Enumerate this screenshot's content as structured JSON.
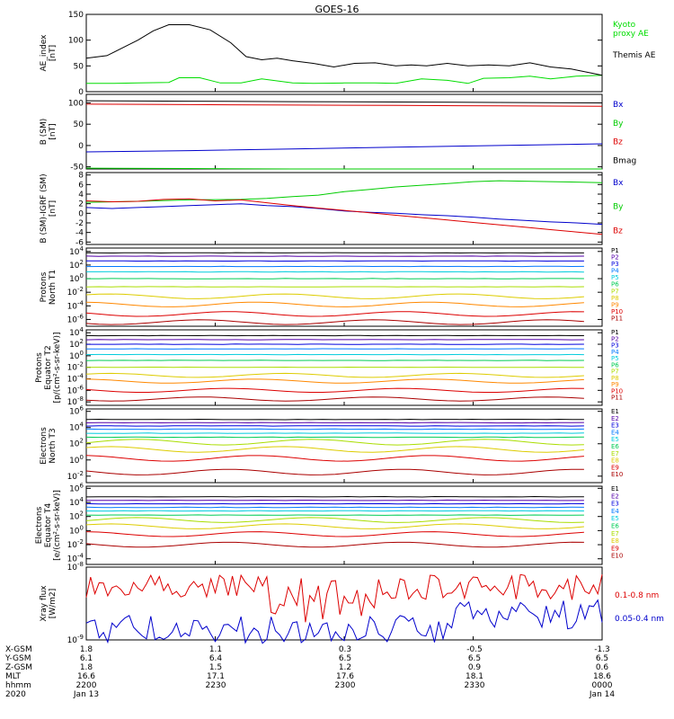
{
  "title": "GOES-16",
  "chart_data": [
    {
      "type": "line",
      "panel": "ae",
      "ylabel_lines": [
        "AE_index",
        "[nT]"
      ],
      "yticks": [
        "150",
        "100",
        "50",
        "0"
      ],
      "ylim": [
        0,
        150
      ],
      "series": [
        {
          "name": "Kyoto proxy AE",
          "name_lines": [
            "Kyoto",
            "proxy AE"
          ],
          "color": "#00dd00",
          "x": [
            0,
            0.05,
            0.1,
            0.16,
            0.18,
            0.22,
            0.26,
            0.3,
            0.34,
            0.4,
            0.44,
            0.5,
            0.56,
            0.6,
            0.65,
            0.7,
            0.74,
            0.77,
            0.82,
            0.86,
            0.9,
            0.95,
            1
          ],
          "y": [
            16,
            16,
            17,
            18,
            27,
            27,
            17,
            17,
            25,
            17,
            16,
            17,
            17,
            16,
            25,
            22,
            16,
            26,
            27,
            30,
            25,
            30,
            32
          ]
        },
        {
          "name": "Themis AE",
          "color": "#000000",
          "x": [
            0,
            0.04,
            0.08,
            0.1,
            0.13,
            0.16,
            0.2,
            0.24,
            0.28,
            0.31,
            0.34,
            0.37,
            0.4,
            0.44,
            0.48,
            0.52,
            0.56,
            0.6,
            0.63,
            0.66,
            0.7,
            0.74,
            0.78,
            0.82,
            0.86,
            0.9,
            0.94,
            0.98,
            1
          ],
          "y": [
            65,
            70,
            90,
            100,
            118,
            130,
            130,
            120,
            95,
            68,
            62,
            65,
            60,
            55,
            48,
            55,
            56,
            50,
            52,
            50,
            55,
            50,
            52,
            50,
            56,
            48,
            44,
            36,
            32
          ]
        }
      ]
    },
    {
      "type": "line",
      "panel": "bsm",
      "ylabel_lines": [
        "B (SM)",
        "[nT]"
      ],
      "yticks": [
        "100",
        "50",
        "0",
        "-50"
      ],
      "ylim": [
        -55,
        120
      ],
      "series": [
        {
          "name": "Bx",
          "color": "#0000cc",
          "x": [
            0,
            0.2,
            0.4,
            0.6,
            0.8,
            1
          ],
          "y": [
            -15,
            -12,
            -8,
            -4,
            0,
            4
          ]
        },
        {
          "name": "By",
          "color": "#00cc00",
          "x": [
            0,
            0.2,
            0.4,
            0.6,
            0.8,
            1
          ],
          "y": [
            -53,
            -54,
            -55,
            -55,
            -55,
            -55
          ]
        },
        {
          "name": "Bz",
          "color": "#dd0000",
          "x": [
            0,
            0.2,
            0.4,
            0.6,
            0.8,
            1
          ],
          "y": [
            97,
            96,
            95,
            94,
            93,
            92
          ]
        },
        {
          "name": "Bmag",
          "color": "#000000",
          "x": [
            0,
            0.2,
            0.4,
            0.6,
            0.8,
            1
          ],
          "y": [
            105,
            104,
            103,
            102,
            101,
            100
          ]
        }
      ]
    },
    {
      "type": "line",
      "panel": "bdiff",
      "ylabel_lines": [
        "B (SM)-IGRF (SM)",
        "[nT]"
      ],
      "yticks": [
        "8",
        "6",
        "4",
        "2",
        "0",
        "-2",
        "-4",
        "-6"
      ],
      "ylim": [
        -6.5,
        8.5
      ],
      "series": [
        {
          "name": "Bx",
          "color": "#0000cc",
          "x": [
            0,
            0.05,
            0.1,
            0.15,
            0.2,
            0.25,
            0.3,
            0.35,
            0.4,
            0.45,
            0.5,
            0.55,
            0.6,
            0.65,
            0.7,
            0.75,
            0.8,
            0.85,
            0.9,
            0.95,
            1
          ],
          "y": [
            1.2,
            1.0,
            1.2,
            1.4,
            1.6,
            1.8,
            2.0,
            1.6,
            1.4,
            1.0,
            0.5,
            0.2,
            0.0,
            -0.3,
            -0.5,
            -0.8,
            -1.2,
            -1.5,
            -1.8,
            -2.0,
            -2.3
          ]
        },
        {
          "name": "By",
          "color": "#00cc00",
          "x": [
            0,
            0.1,
            0.2,
            0.3,
            0.35,
            0.4,
            0.45,
            0.5,
            0.55,
            0.6,
            0.7,
            0.75,
            0.8,
            0.85,
            0.9,
            1
          ],
          "y": [
            2.3,
            2.5,
            2.8,
            2.9,
            3.1,
            3.5,
            3.8,
            4.5,
            5.0,
            5.5,
            6.2,
            6.6,
            6.8,
            6.7,
            6.6,
            6.4
          ]
        },
        {
          "name": "Bz",
          "color": "#dd0000",
          "x": [
            0,
            0.05,
            0.1,
            0.15,
            0.2,
            0.25,
            0.3,
            0.35,
            0.4,
            0.45,
            0.5,
            0.55,
            0.6,
            0.65,
            0.7,
            0.75,
            0.8,
            0.85,
            0.9,
            0.95,
            1
          ],
          "y": [
            2.6,
            2.4,
            2.5,
            2.9,
            3.0,
            2.6,
            2.8,
            2.2,
            1.6,
            1.1,
            0.6,
            0.1,
            -0.4,
            -0.9,
            -1.4,
            -1.9,
            -2.4,
            -2.9,
            -3.4,
            -3.9,
            -4.4
          ]
        }
      ]
    },
    {
      "type": "line",
      "panel": "protons_north",
      "ylabel_lines": [
        "Protons",
        "North T1"
      ],
      "log": true,
      "yticks": [
        "10^4",
        "10^2",
        "10^0",
        "10^-2",
        "10^-4",
        "10^-6"
      ],
      "ylim_exp": [
        -7,
        4.5
      ],
      "channel_labels": [
        "P1",
        "P2",
        "P3",
        "P4",
        "P5",
        "P6",
        "P7",
        "P8",
        "P9",
        "P10",
        "P11"
      ],
      "channel_colors": [
        "#000000",
        "#5500aa",
        "#0000dd",
        "#0077ff",
        "#00ccdd",
        "#00cc55",
        "#aadd00",
        "#ddcc00",
        "#ff8800",
        "#dd0000",
        "#aa0000"
      ],
      "levels": [
        3.8,
        3.3,
        2.6,
        1.8,
        1.0,
        0.0,
        -1.2,
        -2.6,
        -3.8,
        -5.2,
        -6.4
      ]
    },
    {
      "type": "line",
      "panel": "protons_equator",
      "ylabel_lines": [
        "Protons",
        "Equator T2",
        "[p/(cm²-s-sr-keV)]"
      ],
      "log": true,
      "yticks": [
        "10^4",
        "10^2",
        "10^0",
        "10^-2",
        "10^-4",
        "10^-6",
        "10^-8"
      ],
      "ylim_exp": [
        -8.6,
        4.5
      ],
      "channel_labels": [
        "P1",
        "P2",
        "P3",
        "P4",
        "P5",
        "P6",
        "P7",
        "P8",
        "P9",
        "P10",
        "P11"
      ],
      "channel_colors": [
        "#000000",
        "#5500aa",
        "#0000dd",
        "#0077ff",
        "#00ccdd",
        "#00cc55",
        "#aadd00",
        "#ddcc00",
        "#ff8800",
        "#dd0000",
        "#aa0000"
      ],
      "levels": [
        3.5,
        2.8,
        2.0,
        1.2,
        0.2,
        -0.8,
        -2.0,
        -3.4,
        -4.4,
        -6.0,
        -7.5
      ]
    },
    {
      "type": "line",
      "panel": "electrons_north",
      "ylabel_lines": [
        "Electrons",
        "North T3"
      ],
      "log": true,
      "yticks": [
        "10^6",
        "10^4",
        "10^2",
        "10^0",
        "10^-2"
      ],
      "ylim_exp": [
        -2.8,
        6.3
      ],
      "channel_labels": [
        "E1",
        "E2",
        "E3",
        "E4",
        "E5",
        "E6",
        "E7",
        "E8",
        "E9",
        "E10"
      ],
      "channel_colors": [
        "#000000",
        "#5500aa",
        "#0000dd",
        "#0077ff",
        "#00ccdd",
        "#00cc55",
        "#aadd00",
        "#ddcc00",
        "#dd0000",
        "#aa0000"
      ],
      "levels": [
        5.0,
        4.6,
        4.2,
        3.8,
        3.3,
        2.8,
        2.2,
        1.3,
        0.2,
        -1.5
      ]
    },
    {
      "type": "line",
      "panel": "electrons_equator",
      "ylabel_lines": [
        "Electrons",
        "Equator T4",
        "[e/(cm²-s-sr-keV)]"
      ],
      "log": true,
      "yticks": [
        "10^6",
        "10^4",
        "10^2",
        "10^0",
        "10^-2",
        "10^-4"
      ],
      "ylim_exp": [
        -4.8,
        6.3
      ],
      "channel_labels": [
        "E1",
        "E2",
        "E3",
        "E4",
        "E5",
        "E6",
        "E7",
        "E8",
        "E9",
        "E10"
      ],
      "channel_colors": [
        "#000000",
        "#5500aa",
        "#0000dd",
        "#0077ff",
        "#00ccdd",
        "#00cc55",
        "#aadd00",
        "#ddcc00",
        "#dd0000",
        "#aa0000"
      ],
      "levels": [
        4.8,
        4.3,
        3.8,
        3.3,
        2.8,
        2.2,
        1.5,
        0.6,
        -0.5,
        -2.0
      ]
    },
    {
      "type": "line",
      "panel": "xray",
      "ylabel_lines": [
        "Xray flux",
        "[W/m2]"
      ],
      "log": true,
      "yticks": [
        "10^-8",
        "10^-9"
      ],
      "ylim_exp": [
        -9,
        -8
      ],
      "series": [
        {
          "name": "0.1-0.8 nm",
          "color": "#dd0000"
        },
        {
          "name": "0.05-0.4 nm",
          "color": "#0000cc"
        }
      ]
    }
  ],
  "footer": {
    "row_labels": [
      "X-GSM",
      "Y-GSM",
      "Z-GSM",
      "MLT",
      "hhmm",
      "2020"
    ],
    "columns": [
      [
        "1.8",
        "6.1",
        "1.8",
        "16.6",
        "2200",
        "Jan 13"
      ],
      [
        "1.1",
        "6.4",
        "1.5",
        "17.1",
        "2230",
        ""
      ],
      [
        "0.3",
        "6.5",
        "1.2",
        "17.6",
        "2300",
        ""
      ],
      [
        "-0.5",
        "6.5",
        "0.9",
        "18.1",
        "2330",
        ""
      ],
      [
        "-1.3",
        "6.5",
        "0.6",
        "18.6",
        "0000",
        "Jan 14"
      ]
    ]
  }
}
